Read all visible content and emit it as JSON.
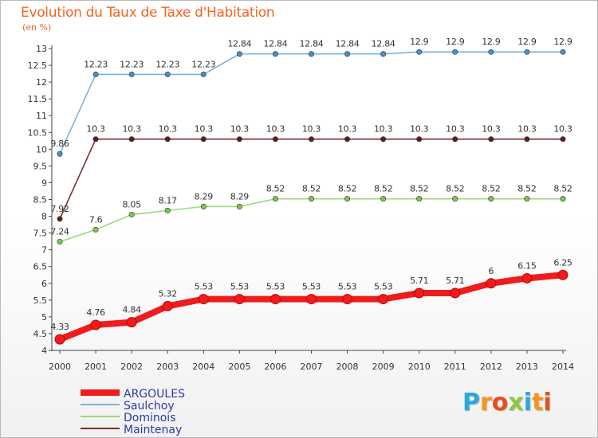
{
  "title": "Evolution du Taux de Taxe d'Habitation",
  "subtitle": "(en %)",
  "brand": {
    "name": "Proxiti",
    "letters": [
      "P",
      "r",
      "o",
      "x",
      "i",
      "t",
      "i"
    ],
    "colors": [
      "#2aa7e0",
      "#f7941d",
      "#e84e1b",
      "#8dc63f",
      "#2aa7e0",
      "#f7941d",
      "#e84e1b"
    ]
  },
  "chart_data": {
    "type": "line",
    "title": "Evolution du Taux de Taxe d'Habitation",
    "ylabel": "(en %)",
    "xlabel": "",
    "ylim": [
      4,
      13
    ],
    "yticks": [
      "4",
      "4.5",
      "5",
      "5.5",
      "6",
      "6.5",
      "7",
      "7.5",
      "8",
      "8.5",
      "9",
      "9.5",
      "10",
      "10.5",
      "11",
      "11.5",
      "12",
      "12.5",
      "13"
    ],
    "categories": [
      "2000",
      "2001",
      "2002",
      "2003",
      "2004",
      "2005",
      "2006",
      "2007",
      "2008",
      "2009",
      "2010",
      "2011",
      "2012",
      "2013",
      "2014"
    ],
    "grid": false,
    "legend_position": "bottom-left",
    "series": [
      {
        "name": "Saulchoy",
        "color": "#7eb2d9",
        "marker": "#4a8fc8",
        "values": [
          9.86,
          12.23,
          12.23,
          12.23,
          12.23,
          12.84,
          12.84,
          12.84,
          12.84,
          12.84,
          12.9,
          12.9,
          12.9,
          12.9,
          12.9
        ],
        "labels": [
          "9.86",
          "12.23",
          "12.23",
          "12.23",
          "12.23",
          "12.84",
          "12.84",
          "12.84",
          "12.84",
          "12.84",
          "12.9",
          "12.9",
          "12.9",
          "12.9",
          "12.9"
        ]
      },
      {
        "name": "Maintenay",
        "color": "#7a2e2e",
        "marker": "#5e1f1f",
        "values": [
          7.92,
          10.3,
          10.3,
          10.3,
          10.3,
          10.3,
          10.3,
          10.3,
          10.3,
          10.3,
          10.3,
          10.3,
          10.3,
          10.3,
          10.3
        ],
        "labels": [
          "7.92",
          "10.3",
          "10.3",
          "10.3",
          "10.3",
          "10.3",
          "10.3",
          "10.3",
          "10.3",
          "10.3",
          "10.3",
          "10.3",
          "10.3",
          "10.3",
          "10.3"
        ]
      },
      {
        "name": "Dominois",
        "color": "#9fd87a",
        "marker": "#7cc84e",
        "values": [
          7.24,
          7.6,
          8.05,
          8.17,
          8.29,
          8.29,
          8.52,
          8.52,
          8.52,
          8.52,
          8.52,
          8.52,
          8.52,
          8.52,
          8.52
        ],
        "labels": [
          "7.24",
          "7.6",
          "8.05",
          "8.17",
          "8.29",
          "8.29",
          "8.52",
          "8.52",
          "8.52",
          "8.52",
          "8.52",
          "8.52",
          "8.52",
          "8.52",
          "8.52"
        ]
      },
      {
        "name": "ARGOULES",
        "color": "#ee1c1c",
        "marker": "#ee1c1c",
        "values": [
          4.33,
          4.76,
          4.84,
          5.32,
          5.53,
          5.53,
          5.53,
          5.53,
          5.53,
          5.53,
          5.71,
          5.71,
          6,
          6.15,
          6.25
        ],
        "labels": [
          "4.33",
          "4.76",
          "4.84",
          "5.32",
          "5.53",
          "5.53",
          "5.53",
          "5.53",
          "5.53",
          "5.53",
          "5.71",
          "5.71",
          "6",
          "6.15",
          "6.25"
        ]
      }
    ],
    "legend": [
      "ARGOULES",
      "Saulchoy",
      "Dominois",
      "Maintenay"
    ]
  }
}
